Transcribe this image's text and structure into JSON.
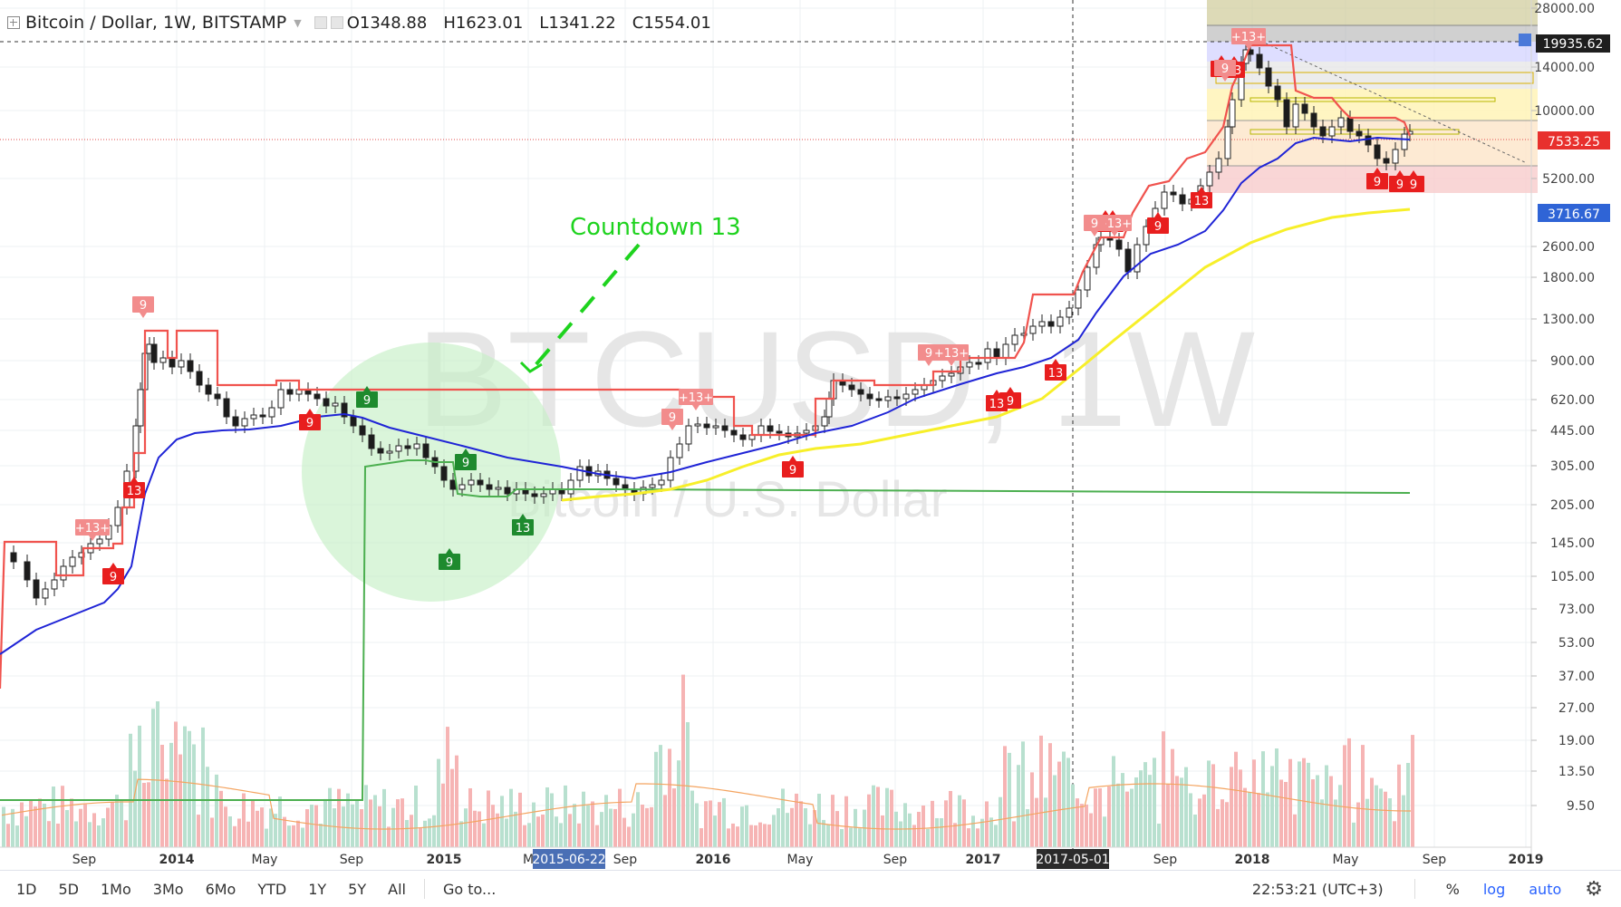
{
  "header": {
    "title": "Bitcoin / Dollar, 1W, BITSTAMP",
    "open": "O1348.88",
    "high": "H1623.01",
    "low": "L1341.22",
    "close": "C1554.01"
  },
  "watermark": {
    "symbol": "BTCUSD, 1W",
    "description": "Bitcoin / U.S. Dollar"
  },
  "annotation": {
    "text": "Countdown 13"
  },
  "price_axis": {
    "ticks": [
      "28000.00",
      "14000.00",
      "10000.00",
      "5200.00",
      "2600.00",
      "1800.00",
      "1300.00",
      "900.00",
      "620.00",
      "445.00",
      "305.00",
      "205.00",
      "145.00",
      "105.00",
      "73.00",
      "53.00",
      "37.00",
      "27.00",
      "19.00",
      "13.50",
      "9.50"
    ],
    "labels": {
      "high": "19935.62",
      "current": "7533.25",
      "ma": "3716.67"
    }
  },
  "time_axis": {
    "ticks": [
      "Sep",
      "2014",
      "May",
      "Sep",
      "2015",
      "M",
      "Sep",
      "2016",
      "May",
      "Sep",
      "2017",
      "Sep",
      "2018",
      "May",
      "Sep",
      "2019"
    ],
    "highlight_left": "2015-06-22",
    "highlight_right": "2017-05-01"
  },
  "bottom_toolbar": {
    "timeframes": [
      "1D",
      "5D",
      "1Mo",
      "3Mo",
      "6Mo",
      "YTD",
      "1Y",
      "5Y",
      "All"
    ],
    "goto": "Go to...",
    "clock": "22:53:21 (UTC+3)",
    "percent": "%",
    "log": "log",
    "auto": "auto"
  },
  "markers": {
    "red": [
      "9",
      "13",
      "9",
      "9",
      "9",
      "13",
      "9",
      "13",
      "9",
      "13",
      "9",
      "13",
      "9",
      "13",
      "9",
      "9"
    ],
    "green": [
      "9",
      "9",
      "9",
      "13"
    ],
    "pink": [
      "9",
      "+13+",
      "9",
      "+13+",
      "9",
      "+13+",
      "+13+",
      "9",
      "+13+",
      "9"
    ]
  },
  "colors": {
    "red_stop": "#f0534e",
    "blue_ma": "#1f24d6",
    "yellow_ma": "#f7ef2a",
    "green_stop": "#4caf50",
    "bull": "#26a69a",
    "bear": "#ef5350",
    "annotation": "#1ed31e"
  }
}
